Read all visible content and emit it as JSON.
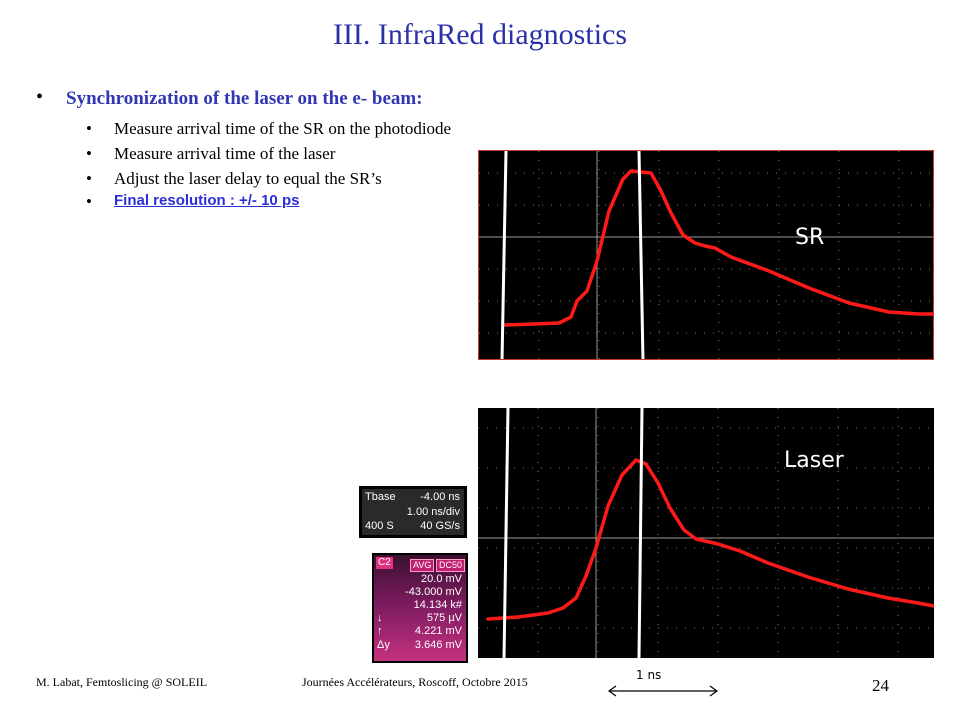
{
  "title": "III. InfraRed diagnostics",
  "bullet_main": "Synchronization of the laser on the e- beam:",
  "sub_bullets": [
    "Measure arrival time of the SR on the photodiode",
    "Measure arrival time of the laser",
    "Adjust the laser delay to equal the SR’s"
  ],
  "final_resolution": "Final resolution : +/- 10 ps",
  "scope_top_label": "SR",
  "scope_bottom_label": "Laser",
  "timebase_panel": {
    "row1_label": "Tbase",
    "row1_value": "-4.00 ns",
    "row2_value": "1.00 ns/div",
    "row3_label": "400 S",
    "row3_value": "40 GS/s"
  },
  "channel_panel": {
    "channel": "C2",
    "tag1": "AVG",
    "tag2": "DC50",
    "rows": [
      "20.0 mV",
      "-43.000 mV",
      "14.134 k#"
    ],
    "meas": [
      {
        "sym": "↓",
        "val": "575 µV"
      },
      {
        "sym": "↑",
        "val": "4.221 mV"
      },
      {
        "sym": "Δy",
        "val": "3.646 mV"
      }
    ]
  },
  "scale_label": "1 ns",
  "footer_left": "M. Labat, Femtoslicing @ SOLEIL",
  "footer_center": "Journées Accélérateurs, Roscoff, Octobre 2015",
  "page_number": "24",
  "colors": {
    "title": "#2b2fa8",
    "trace": "#ff1a1a",
    "scope_bg": "#000000",
    "link": "#2b2fd6"
  }
}
